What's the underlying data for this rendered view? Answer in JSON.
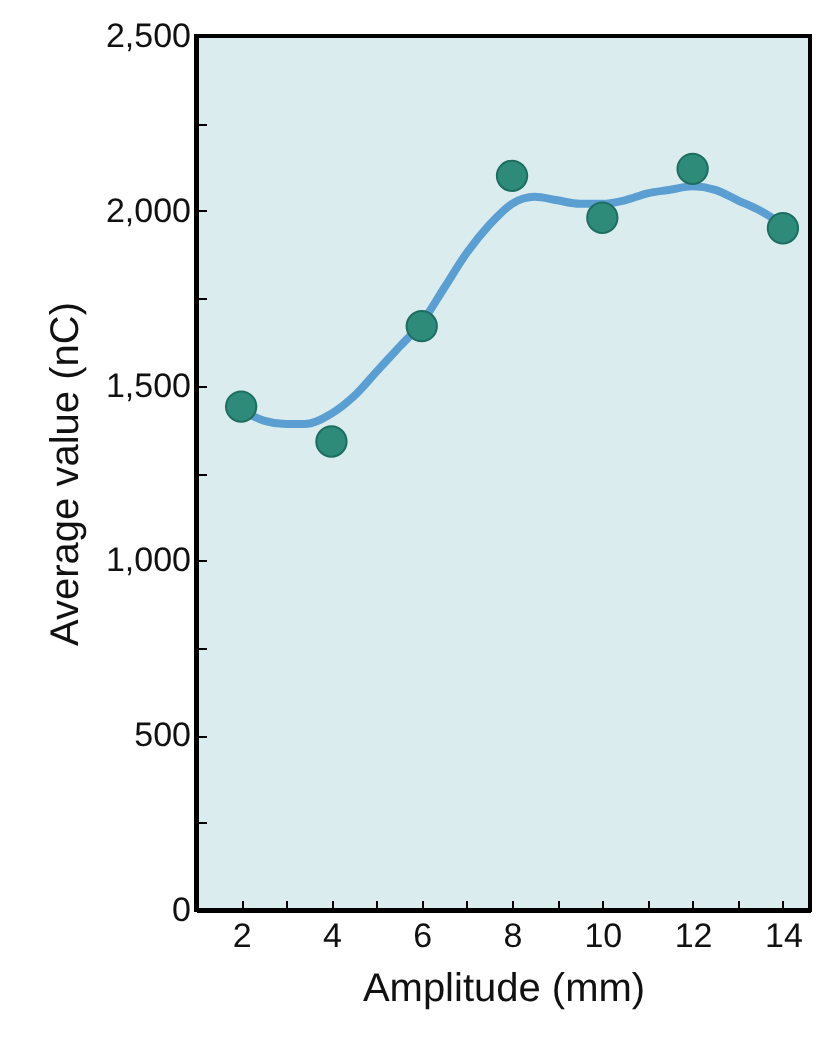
{
  "chart_data": {
    "type": "scatter",
    "xlabel": "Amplitude (mm)",
    "ylabel": "Average value (nC)",
    "xlim": [
      1,
      14.6
    ],
    "ylim": [
      0,
      2500
    ],
    "xticks": [
      2,
      {
        "value": 3,
        "label": null
      },
      4,
      {
        "value": 5,
        "label": null
      },
      6,
      {
        "value": 7,
        "label": null
      },
      8,
      {
        "value": 9,
        "label": null
      },
      10,
      {
        "value": 11,
        "label": null
      },
      12,
      {
        "value": 13,
        "label": null
      },
      14
    ],
    "yticks": [
      0,
      {
        "value": 250,
        "label": null
      },
      500,
      {
        "value": 750,
        "label": null
      },
      {
        "value": 1000,
        "label": "1,000"
      },
      {
        "value": 1250,
        "label": null
      },
      {
        "value": 1500,
        "label": "1,500"
      },
      {
        "value": 1750,
        "label": null
      },
      {
        "value": 2000,
        "label": "2,000"
      },
      {
        "value": 2250,
        "label": null
      },
      {
        "value": 2500,
        "label": "2,500"
      }
    ],
    "series": [
      {
        "type": "line",
        "color": "#5b9fd2",
        "line_style": "solid",
        "marker": "none",
        "x": [
          2,
          2.5,
          3,
          3.4,
          4,
          4.5,
          5,
          5.5,
          6,
          6.5,
          7,
          7.5,
          8,
          8.5,
          9,
          9.5,
          10,
          10.5,
          11,
          11.5,
          12,
          12.5,
          13,
          13.5,
          14
        ],
        "values": [
          1430,
          1400,
          1390,
          1390,
          1420,
          1470,
          1540,
          1610,
          1680,
          1780,
          1880,
          1960,
          2020,
          2040,
          2030,
          2020,
          2020,
          2030,
          2050,
          2060,
          2070,
          2060,
          2030,
          2000,
          1960
        ]
      },
      {
        "color": "#2e8b7a",
        "marker": "circle",
        "x": [
          2,
          4,
          6,
          8,
          10,
          12,
          14
        ],
        "values": [
          1440,
          1340,
          1670,
          2100,
          1980,
          2120,
          1950
        ]
      }
    ]
  }
}
